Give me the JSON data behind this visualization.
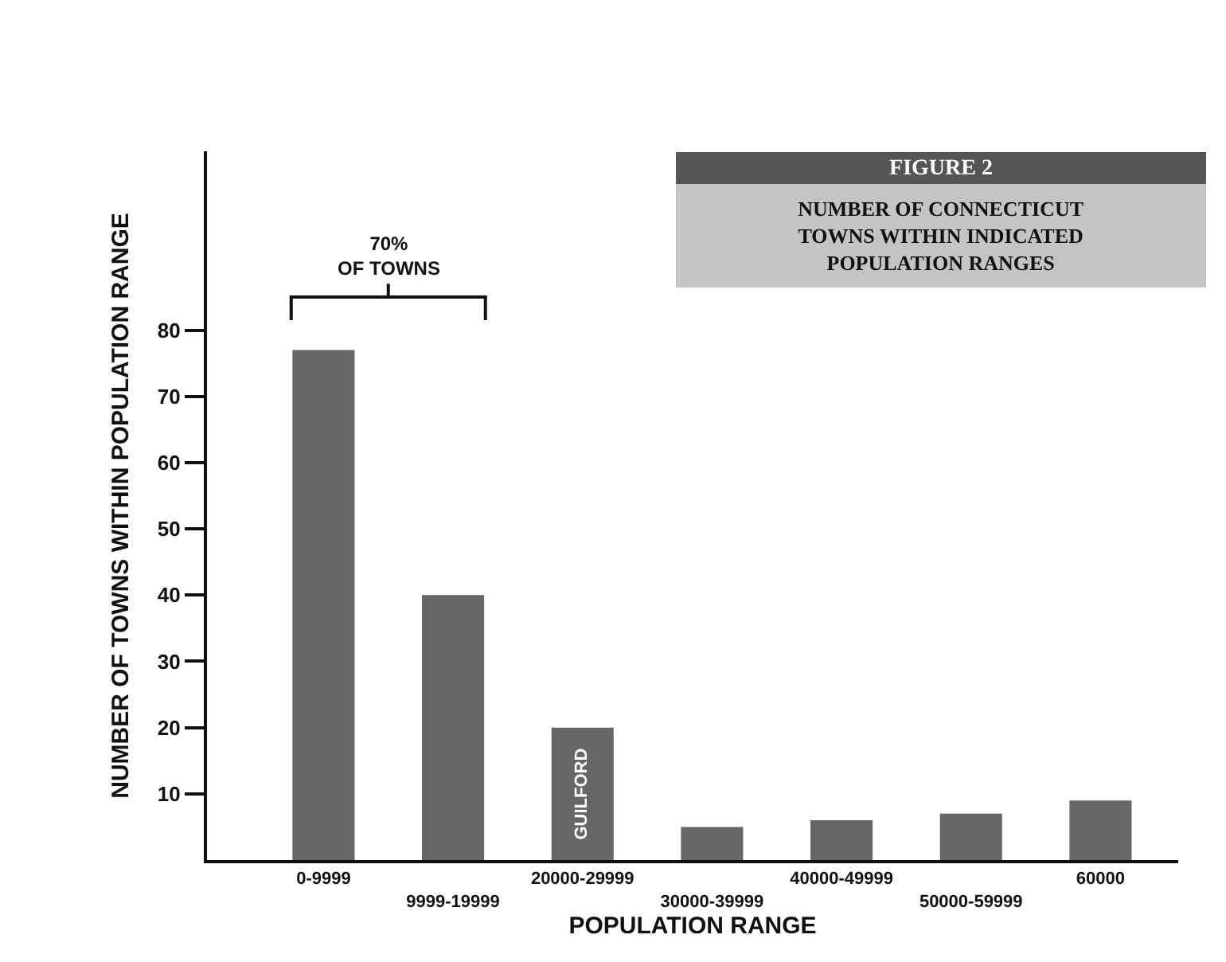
{
  "chart_data": {
    "type": "bar",
    "title": "FIGURE 2",
    "subtitle": "NUMBER OF CONNECTICUT TOWNS WITHIN INDICATED POPULATION RANGES",
    "xlabel": "POPULATION RANGE",
    "ylabel": "NUMBER OF TOWNS WITHIN POPULATION RANGE",
    "categories": [
      "0-9999",
      "9999-19999",
      "20000-29999",
      "30000-39999",
      "40000-49999",
      "50000-59999",
      "60000"
    ],
    "values": [
      77,
      40,
      20,
      5,
      6,
      7,
      9
    ],
    "color": "#666666",
    "ylim": [
      0,
      107
    ],
    "yticks": [
      10,
      20,
      30,
      40,
      50,
      60,
      70,
      80
    ],
    "annotations": [
      "70%\nOF TOWNS",
      "GUILFORD"
    ]
  }
}
